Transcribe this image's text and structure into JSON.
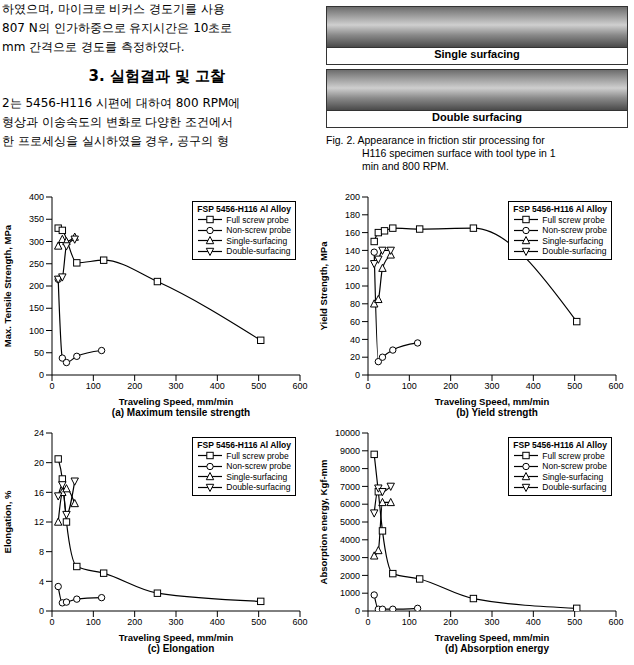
{
  "page": {
    "left_text": [
      "하였으며, 마이크로 비커스 경도기를 사용",
      "807 N의 인가하중으로 유지시간은 10초로",
      "mm 간격으로 경도를 측정하였다."
    ],
    "section_title": "3. 실험결과 및 고찰",
    "paragraph": [
      "2는 5456-H116 시편에 대하여 800 RPM에",
      "형상과 이송속도의 변화로 다양한 조건에서",
      "한 프로세싱을 실시하였을 경우, 공구의 형"
    ],
    "photo_labels": [
      "Single surfacing",
      "Double surfacing"
    ],
    "caption": [
      "Fig. 2. Appearance in friction stir processing for",
      "H116 specimen surface with tool type in 1",
      "min and 800 RPM."
    ]
  },
  "chart_data": [
    {
      "type": "line",
      "title": "(a) Maximum tensile strength",
      "x_label": "Traveling Speed, mm/min",
      "y_label": "Max. Tensile Strength, MPa",
      "xlim": [
        0,
        600
      ],
      "xticks": [
        0,
        100,
        200,
        300,
        400,
        500,
        600
      ],
      "ylim": [
        0,
        400
      ],
      "yticks": [
        0,
        50,
        100,
        150,
        200,
        250,
        300,
        350,
        400
      ],
      "legend_title": "FSP 5456-H116 Al Alloy",
      "legend": "upper right",
      "series": [
        {
          "name": "Full screw probe",
          "color": "#000000",
          "marker": "square",
          "x": [
            15,
            25,
            60,
            125,
            255,
            505
          ],
          "values": [
            330,
            325,
            252,
            258,
            210,
            78
          ]
        },
        {
          "name": "Non-screw probe",
          "color": "#000000",
          "marker": "circle",
          "x": [
            15,
            25,
            35,
            60,
            120
          ],
          "values": [
            215,
            38,
            28,
            42,
            55
          ]
        },
        {
          "name": "Single-surfacing",
          "color": "#000000",
          "marker": "triangle",
          "x": [
            15,
            25,
            35,
            55
          ],
          "values": [
            290,
            305,
            300,
            310
          ]
        },
        {
          "name": "Double-surfacing",
          "color": "#000000",
          "marker": "triangle-down",
          "x": [
            15,
            25,
            35,
            55
          ],
          "values": [
            215,
            220,
            290,
            305
          ]
        }
      ]
    },
    {
      "type": "line",
      "title": "(b) Yield strength",
      "x_label": "Traveling Speed, mm/min",
      "y_label": "Yield Strength, MPa",
      "xlim": [
        0,
        600
      ],
      "xticks": [
        0,
        100,
        200,
        300,
        400,
        500,
        600
      ],
      "ylim": [
        0,
        200
      ],
      "yticks": [
        0,
        20,
        40,
        60,
        80,
        100,
        120,
        140,
        160,
        180,
        200
      ],
      "legend_title": "FSP 5456-H116 Al Alloy",
      "legend": "upper right",
      "series": [
        {
          "name": "Full screw probe",
          "color": "#000000",
          "marker": "square",
          "x": [
            15,
            25,
            40,
            60,
            125,
            255,
            505
          ],
          "values": [
            150,
            160,
            162,
            165,
            164,
            165,
            60
          ]
        },
        {
          "name": "Non-screw probe",
          "color": "#000000",
          "marker": "circle",
          "x": [
            15,
            25,
            35,
            60,
            120
          ],
          "values": [
            138,
            15,
            20,
            28,
            36
          ]
        },
        {
          "name": "Single-surfacing",
          "color": "#000000",
          "marker": "triangle",
          "x": [
            15,
            25,
            35,
            55
          ],
          "values": [
            80,
            85,
            120,
            135
          ]
        },
        {
          "name": "Double-surfacing",
          "color": "#000000",
          "marker": "triangle-down",
          "x": [
            15,
            25,
            35,
            55
          ],
          "values": [
            125,
            130,
            140,
            140
          ]
        }
      ]
    },
    {
      "type": "line",
      "title": "(c) Elongation",
      "x_label": "Traveling Speed, mm/min",
      "y_label": "Elongation, %",
      "xlim": [
        0,
        600
      ],
      "xticks": [
        0,
        100,
        200,
        300,
        400,
        500,
        600
      ],
      "ylim": [
        0,
        24
      ],
      "yticks": [
        0,
        4,
        8,
        12,
        16,
        20,
        24
      ],
      "legend_title": "FSP 5456-H116 Al Alloy",
      "legend": "upper right",
      "series": [
        {
          "name": "Full screw probe",
          "color": "#000000",
          "marker": "square",
          "x": [
            15,
            25,
            35,
            60,
            125,
            255,
            505
          ],
          "values": [
            20.5,
            17.8,
            12,
            6,
            5.1,
            2.4,
            1.3
          ]
        },
        {
          "name": "Non-screw probe",
          "color": "#000000",
          "marker": "circle",
          "x": [
            15,
            25,
            35,
            60,
            120
          ],
          "values": [
            3.3,
            1.1,
            1.2,
            1.6,
            1.8
          ]
        },
        {
          "name": "Single-surfacing",
          "color": "#000000",
          "marker": "triangle",
          "x": [
            15,
            25,
            35,
            55
          ],
          "values": [
            12,
            16,
            16.5,
            14.5
          ]
        },
        {
          "name": "Double-surfacing",
          "color": "#000000",
          "marker": "triangle-down",
          "x": [
            15,
            25,
            35,
            55
          ],
          "values": [
            15.5,
            17,
            13,
            17.5
          ]
        }
      ]
    },
    {
      "type": "line",
      "title": "(d) Absorption energy",
      "x_label": "Traveling Speed, mm/min",
      "y_label": "Absorption energy, Kgf-mm",
      "xlim": [
        0,
        600
      ],
      "xticks": [
        0,
        100,
        200,
        300,
        400,
        500,
        600
      ],
      "ylim": [
        0,
        10000
      ],
      "yticks": [
        0,
        1000,
        2000,
        3000,
        4000,
        5000,
        6000,
        7000,
        8000,
        9000,
        10000
      ],
      "legend_title": "FSP 5456-H116 Al Alloy",
      "legend": "upper right",
      "series": [
        {
          "name": "Full screw probe",
          "color": "#000000",
          "marker": "square",
          "x": [
            15,
            25,
            35,
            60,
            125,
            255,
            505
          ],
          "values": [
            8800,
            6700,
            4500,
            2100,
            1800,
            700,
            150
          ]
        },
        {
          "name": "Non-screw probe",
          "color": "#000000",
          "marker": "circle",
          "x": [
            15,
            25,
            35,
            60,
            120
          ],
          "values": [
            900,
            100,
            100,
            100,
            150
          ]
        },
        {
          "name": "Single-surfacing",
          "color": "#000000",
          "marker": "triangle",
          "x": [
            15,
            25,
            35,
            55
          ],
          "values": [
            3100,
            3400,
            6100,
            6100
          ]
        },
        {
          "name": "Double-surfacing",
          "color": "#000000",
          "marker": "triangle-down",
          "x": [
            15,
            25,
            35,
            55
          ],
          "values": [
            5500,
            6900,
            6700,
            7000
          ]
        }
      ]
    }
  ]
}
